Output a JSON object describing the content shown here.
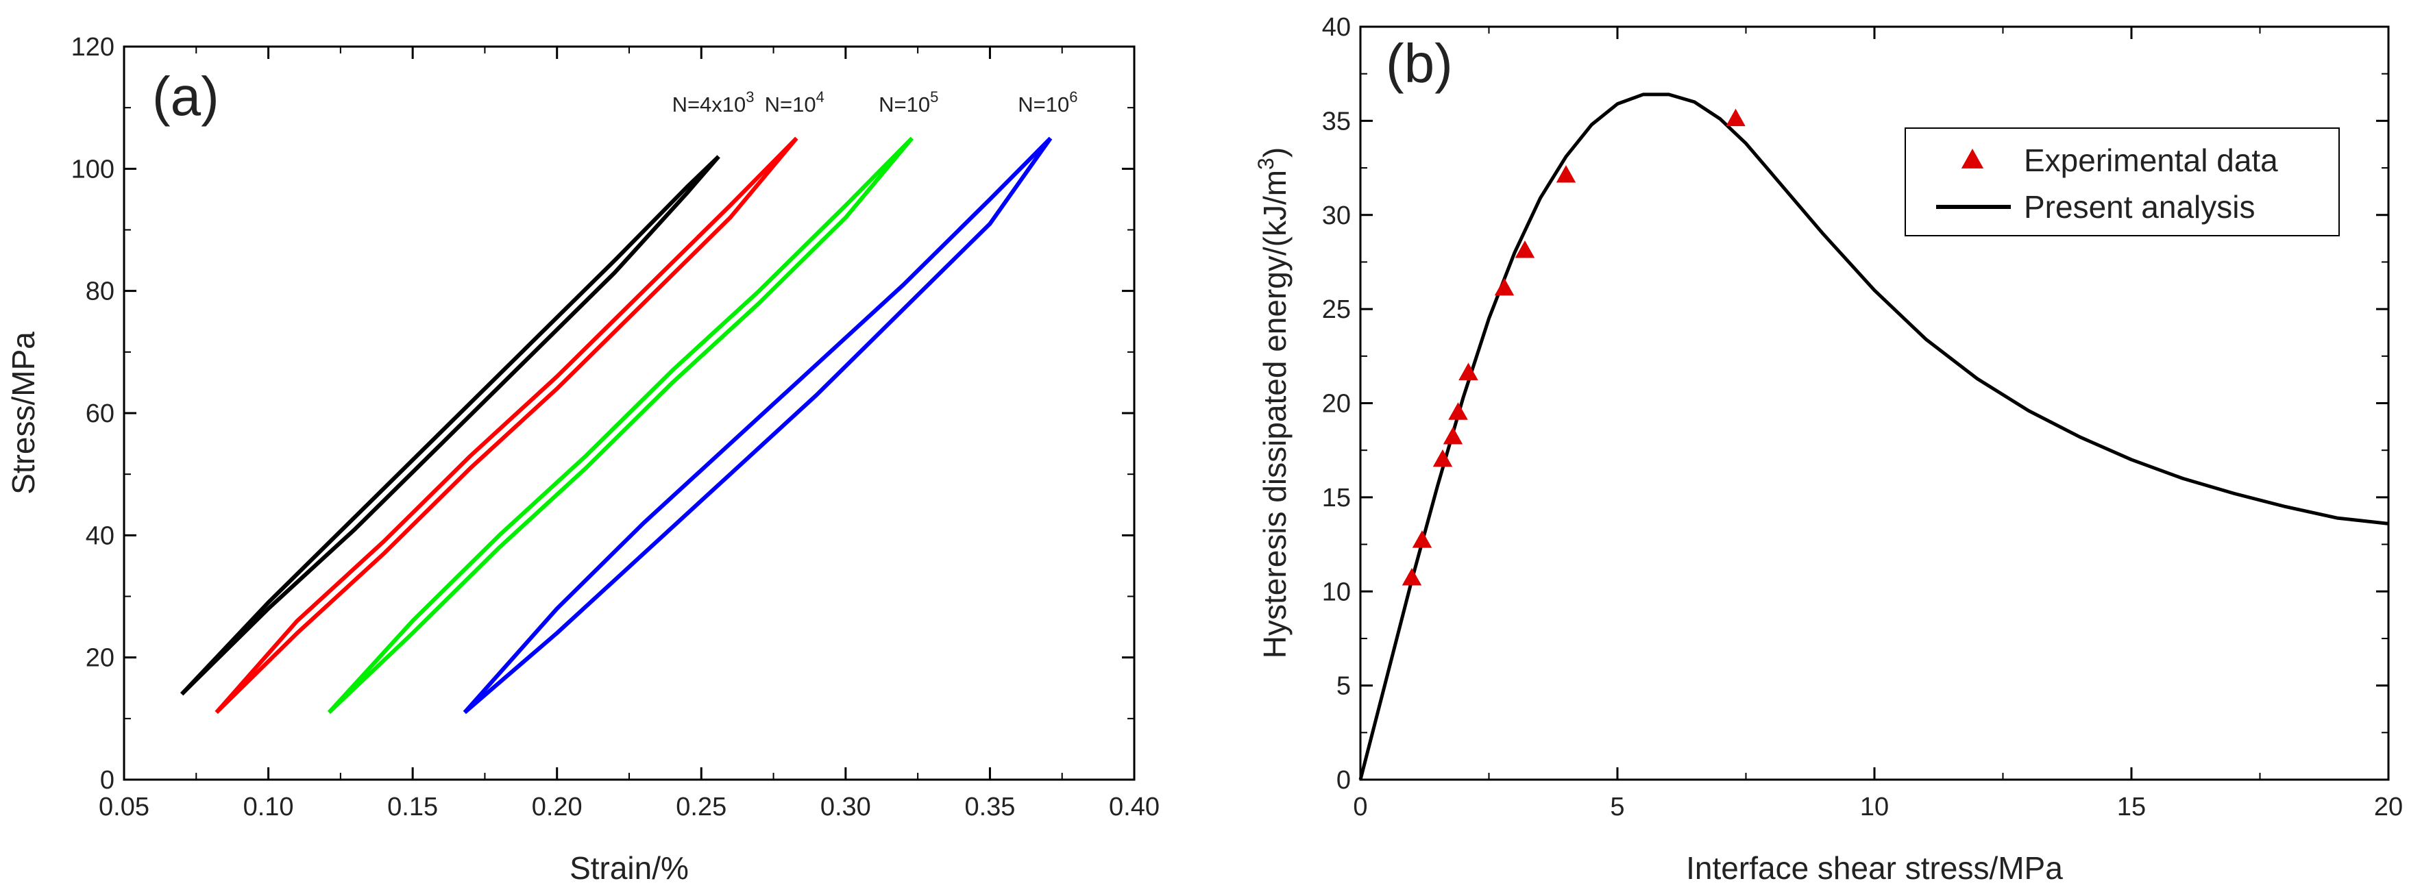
{
  "chart_data": [
    {
      "panel": "(a)",
      "type": "line",
      "title": "",
      "xlabel": "Strain/%",
      "ylabel": "Stress/MPa",
      "xlim": [
        0.05,
        0.4
      ],
      "ylim": [
        0,
        120
      ],
      "xticks": [
        "0.05",
        "0.10",
        "0.15",
        "0.20",
        "0.25",
        "0.30",
        "0.35",
        "0.40"
      ],
      "yticks": [
        "0",
        "20",
        "40",
        "60",
        "80",
        "100",
        "120"
      ],
      "grid": false,
      "series": [
        {
          "name": "N=4x10^3",
          "label_base": "N=4x10",
          "label_exp": "3",
          "color": "#000000",
          "loading": {
            "x": [
              0.07,
              0.1,
              0.13,
              0.16,
              0.19,
              0.22,
              0.245,
              0.256
            ],
            "y": [
              14,
              28,
              41,
              55,
              69,
              83,
              96,
              102
            ]
          },
          "unloading": {
            "x": [
              0.256,
              0.245,
              0.22,
              0.19,
              0.16,
              0.13,
              0.1,
              0.07
            ],
            "y": [
              102,
              97,
              85,
              71,
              57,
              43,
              29,
              14
            ]
          }
        },
        {
          "name": "N=10^4",
          "label_base": "N=10",
          "label_exp": "4",
          "color": "#ff0000",
          "loading": {
            "x": [
              0.082,
              0.11,
              0.14,
              0.17,
              0.2,
              0.23,
              0.26,
              0.283
            ],
            "y": [
              11,
              24,
              37,
              51,
              64,
              78,
              92,
              105
            ]
          },
          "unloading": {
            "x": [
              0.283,
              0.26,
              0.23,
              0.2,
              0.17,
              0.14,
              0.11,
              0.082
            ],
            "y": [
              105,
              94,
              80,
              66,
              53,
              39,
              26,
              11
            ]
          }
        },
        {
          "name": "N=10^5",
          "label_base": "N=10",
          "label_exp": "5",
          "color": "#00ee00",
          "loading": {
            "x": [
              0.121,
              0.15,
              0.18,
              0.21,
              0.24,
              0.27,
              0.3,
              0.323
            ],
            "y": [
              11,
              24,
              38,
              51,
              65,
              78,
              92,
              105
            ]
          },
          "unloading": {
            "x": [
              0.323,
              0.3,
              0.27,
              0.24,
              0.21,
              0.18,
              0.15,
              0.121
            ],
            "y": [
              105,
              94,
              80,
              67,
              53,
              40,
              26,
              11
            ]
          }
        },
        {
          "name": "N=10^6",
          "label_base": "N=10",
          "label_exp": "6",
          "color": "#0000ff",
          "loading": {
            "x": [
              0.168,
              0.2,
              0.23,
              0.26,
              0.29,
              0.32,
              0.35,
              0.371
            ],
            "y": [
              11,
              24,
              37,
              50,
              63,
              77,
              91,
              105
            ]
          },
          "unloading": {
            "x": [
              0.371,
              0.35,
              0.32,
              0.29,
              0.26,
              0.23,
              0.2,
              0.168
            ],
            "y": [
              105,
              95,
              81,
              68,
              55,
              42,
              28,
              11
            ]
          }
        }
      ]
    },
    {
      "panel": "(b)",
      "type": "line+scatter",
      "title": "",
      "xlabel": "Interface shear stress/MPa",
      "ylabel_base": "Hysteresis dissipated energy/(kJ/m",
      "ylabel_exp": "3",
      "ylabel_tail": ")",
      "xlim": [
        0,
        20
      ],
      "ylim": [
        0,
        40
      ],
      "xticks": [
        "0",
        "5",
        "10",
        "15",
        "20"
      ],
      "yticks": [
        "0",
        "5",
        "10",
        "15",
        "20",
        "25",
        "30",
        "35",
        "40"
      ],
      "grid": false,
      "legend_position": "top-right",
      "legend": [
        {
          "label": "Experimental data",
          "marker": "triangle",
          "color": "#dd0000"
        },
        {
          "label": "Present analysis",
          "marker": "line",
          "color": "#000000"
        }
      ],
      "series": [
        {
          "name": "Experimental data",
          "type": "scatter",
          "color": "#dd0000",
          "x": [
            1.0,
            1.2,
            1.6,
            1.8,
            1.9,
            2.1,
            2.8,
            3.2,
            4.0,
            7.3
          ],
          "y": [
            10.7,
            12.7,
            17.0,
            18.2,
            19.5,
            21.6,
            26.1,
            28.1,
            32.1,
            35.1
          ]
        },
        {
          "name": "Present analysis",
          "type": "line",
          "color": "#000000",
          "x": [
            0,
            0.5,
            1.0,
            1.5,
            2.0,
            2.5,
            3.0,
            3.5,
            4.0,
            4.5,
            5.0,
            5.5,
            6.0,
            6.5,
            7.0,
            7.5,
            8.0,
            8.5,
            9.0,
            10.0,
            11.0,
            12.0,
            13.0,
            14.0,
            15.0,
            16.0,
            17.0,
            18.0,
            19.0,
            20.0
          ],
          "y": [
            0,
            5.3,
            10.6,
            15.6,
            20.3,
            24.5,
            28.0,
            30.9,
            33.1,
            34.8,
            35.9,
            36.4,
            36.4,
            36.0,
            35.1,
            33.8,
            32.2,
            30.6,
            29.0,
            26.0,
            23.4,
            21.3,
            19.6,
            18.2,
            17.0,
            16.0,
            15.2,
            14.5,
            13.9,
            13.6
          ]
        }
      ]
    }
  ]
}
